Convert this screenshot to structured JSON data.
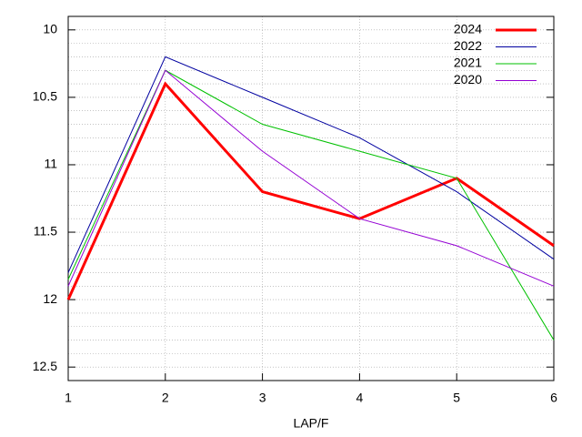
{
  "chart_data": {
    "type": "line",
    "x_label": "LAP/F",
    "x": [
      1,
      2,
      3,
      4,
      5,
      6
    ],
    "xlim": [
      1,
      6
    ],
    "xticks": [
      1,
      2,
      3,
      4,
      5,
      6
    ],
    "ylim": [
      9.9,
      12.6
    ],
    "yticks": [
      10,
      10.5,
      11,
      11.5,
      12,
      12.5
    ],
    "y_reversed": true,
    "grid": true,
    "minor_grid": 5,
    "legend": "top-right",
    "series": [
      {
        "name": "2024",
        "color": "#ff0000",
        "linewidth": 3,
        "values": [
          12,
          10.4,
          11.2,
          11.4,
          11.1,
          11.6
        ]
      },
      {
        "name": "2022",
        "color": "#0000a0",
        "linewidth": 1,
        "values": [
          11.8,
          10.2,
          10.5,
          10.8,
          11.2,
          11.7
        ]
      },
      {
        "name": "2021",
        "color": "#00c000",
        "linewidth": 1,
        "values": [
          11.85,
          10.3,
          10.7,
          10.9,
          11.1,
          12.3
        ]
      },
      {
        "name": "2020",
        "color": "#9400d3",
        "linewidth": 1,
        "values": [
          11.9,
          10.3,
          10.9,
          11.4,
          11.6,
          11.9
        ]
      }
    ]
  }
}
